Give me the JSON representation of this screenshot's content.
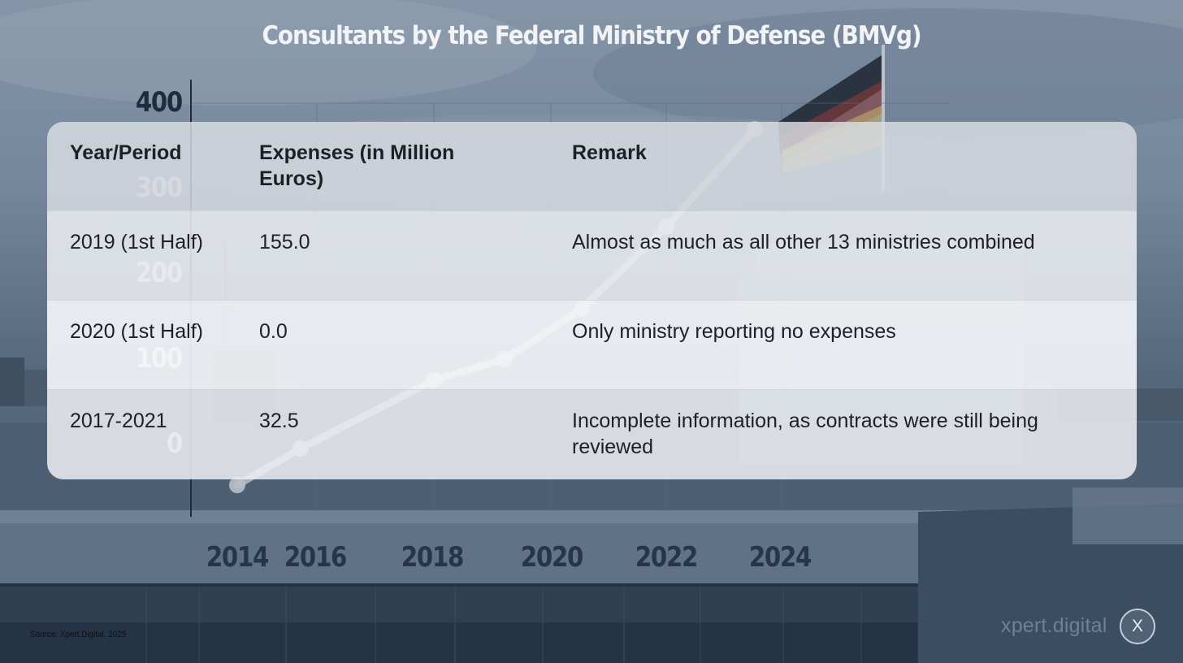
{
  "slide": {
    "title": "Consultants by the Federal Ministry of Defense (BMVg)",
    "source": "Source: Xpert.Digital, 2025",
    "logo": {
      "text": "xpert.digital",
      "badge": "X"
    }
  },
  "background_chart": {
    "y_ticks": [
      "400",
      "300",
      "200",
      "100",
      "0"
    ],
    "x_ticks": [
      "2014",
      "2016",
      "2018",
      "2020",
      "2022",
      "2024"
    ]
  },
  "table": {
    "headers": [
      "Year/Period",
      "Expenses (in Million Euros)",
      "Remark"
    ],
    "rows": [
      {
        "period": "2019 (1st Half)",
        "expenses": "155.0",
        "remark": "Almost as much as all other 13 ministries combined"
      },
      {
        "period": "2020 (1st Half)",
        "expenses": "0.0",
        "remark": "Only ministry reporting no expenses"
      },
      {
        "period": "2017-2021",
        "expenses": "32.5",
        "remark": "Incomplete information, as contracts were still being reviewed"
      }
    ]
  },
  "colors": {
    "title": "#f1f3f6",
    "axis_dark": "#1f2c3d",
    "logo": "#6d8299"
  }
}
